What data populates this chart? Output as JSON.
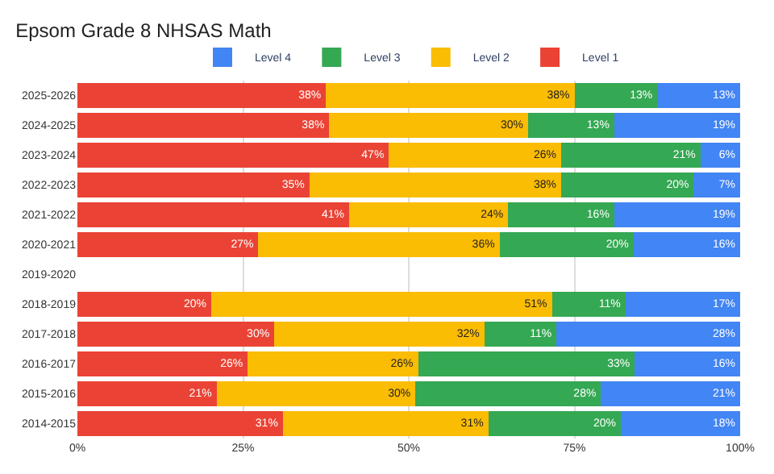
{
  "chart_data": {
    "type": "bar",
    "title": "Epsom Grade 8 NHSAS Math",
    "orientation": "horizontal",
    "stacked": true,
    "legend": "top",
    "grid": "x",
    "categories": [
      "2025-2026",
      "2024-2025",
      "2023-2024",
      "2022-2023",
      "2021-2022",
      "2020-2021",
      "2019-2020",
      "2018-2019",
      "2017-2018",
      "2016-2017",
      "2015-2016",
      "2014-2015"
    ],
    "xlim": [
      0,
      100
    ],
    "xticks": [
      {
        "value": 0,
        "label": "0%"
      },
      {
        "value": 25,
        "label": "25%"
      },
      {
        "value": 50,
        "label": "50%"
      },
      {
        "value": 75,
        "label": "75%"
      },
      {
        "value": 100,
        "label": "100%"
      }
    ],
    "series": [
      {
        "name": "Level 1",
        "color": "#ea4335",
        "values": [
          37.5,
          38,
          47,
          35,
          41,
          27.3,
          null,
          20.2,
          29.7,
          25.7,
          21,
          31
        ],
        "value_labels": [
          "38%",
          "38%",
          "47%",
          "35%",
          "41%",
          "27%",
          null,
          "20%",
          "30%",
          "26%",
          "21%",
          "31%"
        ]
      },
      {
        "name": "Level 2",
        "color": "#fbbc04",
        "values": [
          37.5,
          30,
          26,
          38,
          24,
          36.4,
          null,
          51.4,
          31.7,
          25.7,
          30,
          31
        ],
        "value_labels": [
          "38%",
          "30%",
          "26%",
          "38%",
          "24%",
          "36%",
          null,
          "51%",
          "32%",
          "26%",
          "30%",
          "31%"
        ]
      },
      {
        "name": "Level 3",
        "color": "#34a853",
        "values": [
          12.5,
          13,
          21,
          20,
          16,
          20.2,
          null,
          11.1,
          10.9,
          32.7,
          28,
          20
        ],
        "value_labels": [
          "13%",
          "13%",
          "21%",
          "20%",
          "16%",
          "20%",
          null,
          "11%",
          "11%",
          "33%",
          "28%",
          "20%"
        ]
      },
      {
        "name": "Level 4",
        "color": "#4285f4",
        "values": [
          12.5,
          19,
          6,
          7,
          19,
          16.1,
          null,
          17.3,
          27.7,
          15.9,
          21,
          18
        ],
        "value_labels": [
          "13%",
          "19%",
          "6%",
          "7%",
          "19%",
          "16%",
          null,
          "17%",
          "28%",
          "16%",
          "21%",
          "18%"
        ]
      }
    ]
  }
}
